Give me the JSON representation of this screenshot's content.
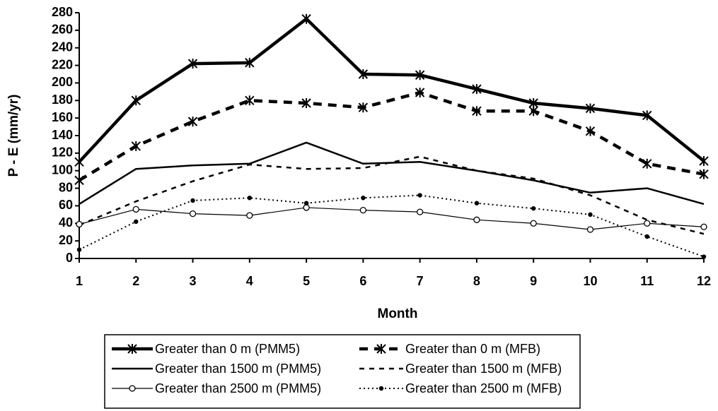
{
  "chart_data": {
    "type": "line",
    "x_label": "Month",
    "y_label": "P - E (mm/yr)",
    "x": [
      1,
      2,
      3,
      4,
      5,
      6,
      7,
      8,
      9,
      10,
      11,
      12
    ],
    "xlim": [
      1,
      12
    ],
    "xticks": [
      1,
      2,
      3,
      4,
      5,
      6,
      7,
      8,
      9,
      10,
      11,
      12
    ],
    "ylim": [
      0,
      280
    ],
    "yticks": [
      0,
      20,
      40,
      60,
      80,
      100,
      120,
      140,
      160,
      180,
      200,
      220,
      240,
      260,
      280
    ],
    "grid": false,
    "series": [
      {
        "name": "Greater than 0 m (PMM5)",
        "color": "#000000",
        "values": [
          110,
          180,
          222,
          223,
          273,
          210,
          209,
          193,
          177,
          171,
          163,
          111
        ]
      },
      {
        "name": "Greater than 0 m (MFB)",
        "color": "#000000",
        "values": [
          89,
          128,
          156,
          180,
          177,
          172,
          189,
          168,
          168,
          145,
          108,
          96
        ]
      },
      {
        "name": "Greater than 1500 m (PMM5)",
        "color": "#000000",
        "values": [
          62,
          102,
          106,
          108,
          132,
          108,
          110,
          100,
          89,
          75,
          80,
          62
        ]
      },
      {
        "name": "Greater than 1500 m (MFB)",
        "color": "#000000",
        "values": [
          38,
          65,
          88,
          107,
          102,
          103,
          116,
          100,
          91,
          72,
          44,
          28
        ]
      },
      {
        "name": "Greater than 2500 m (PMM5)",
        "color": "#000000",
        "values": [
          39,
          56,
          51,
          49,
          58,
          55,
          53,
          44,
          40,
          33,
          40,
          36
        ]
      },
      {
        "name": "Greater than 2500 m (MFB)",
        "color": "#000000",
        "values": [
          10,
          42,
          66,
          69,
          63,
          69,
          72,
          63,
          57,
          50,
          25,
          2
        ]
      }
    ]
  }
}
